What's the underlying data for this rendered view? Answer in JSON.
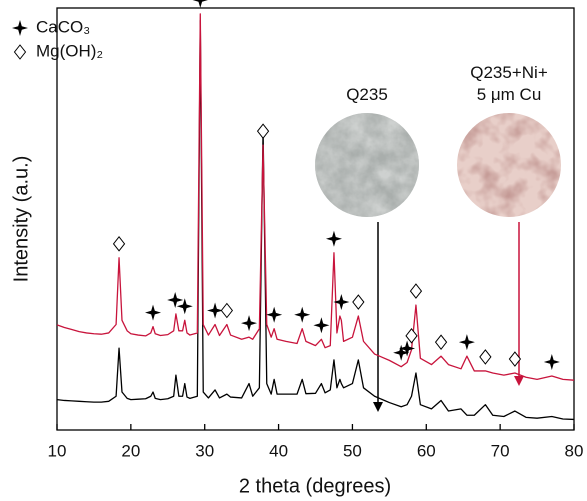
{
  "chart_data": {
    "type": "line",
    "xlabel": "2 theta (degrees)",
    "ylabel": "Intensity (a.u.)",
    "xlim": [
      10,
      80
    ],
    "xticks": [
      10,
      20,
      30,
      40,
      50,
      60,
      70,
      80
    ],
    "ylim": [
      0,
      100
    ],
    "x": [
      10,
      11,
      12,
      13,
      14,
      15,
      16,
      17,
      18,
      18.4,
      18.8,
      19.5,
      20,
      21,
      22,
      22.7,
      23,
      23.3,
      24,
      25,
      25.8,
      26.1,
      26.5,
      27,
      27.3,
      27.6,
      28,
      29,
      29.4,
      29.8,
      30.5,
      31.4,
      32,
      33,
      33.5,
      35,
      36,
      36.5,
      37.4,
      37.9,
      38.4,
      39,
      39.4,
      39.8,
      41,
      42.5,
      43.2,
      43.7,
      45,
      45.8,
      46.3,
      47,
      47.5,
      47.9,
      48.3,
      48.5,
      48.8,
      50,
      50.8,
      51.5,
      53,
      55,
      56.6,
      57.4,
      58,
      58.6,
      59.2,
      60.7,
      62,
      63,
      64.7,
      65.5,
      66.5,
      68,
      69,
      70.5,
      72,
      73.5,
      75,
      77,
      78.5,
      80
    ],
    "series": [
      {
        "name": "Q235",
        "color": "#000000",
        "values": [
          7.2,
          7.0,
          6.9,
          6.8,
          6.7,
          6.6,
          6.6,
          6.8,
          8,
          19.4,
          9,
          7.5,
          7.2,
          7.3,
          7.4,
          8,
          9,
          7.5,
          7.2,
          7.4,
          8,
          13,
          8,
          8,
          11,
          7.8,
          7.5,
          8,
          97,
          9,
          7.6,
          9.5,
          7.6,
          8.5,
          7.8,
          7.6,
          11,
          8,
          10,
          71,
          11,
          8.5,
          12,
          8.5,
          8.5,
          8.5,
          12,
          8.6,
          8.7,
          11,
          8.8,
          9.5,
          16.6,
          10,
          12,
          11,
          10,
          11,
          16.6,
          10,
          8,
          6.5,
          5.5,
          6,
          8,
          13.5,
          6,
          5,
          7,
          4.5,
          5,
          3.5,
          3.5,
          6,
          3.5,
          3.2,
          4.5,
          3,
          2.8,
          3.2,
          2.6,
          2.5
        ]
      },
      {
        "name": "Q235+Ni+ 5 μm Cu",
        "color": "#c8143c",
        "values": [
          24.9,
          24.3,
          23.8,
          23.3,
          23,
          22.8,
          22.7,
          23,
          25,
          40.8,
          26,
          23.5,
          22.8,
          22.5,
          22.3,
          23,
          24.5,
          22.8,
          22.4,
          22.6,
          23.5,
          27.5,
          23.5,
          23.5,
          26,
          23,
          22.5,
          23,
          98.6,
          25,
          22.5,
          25,
          22.4,
          25,
          22.5,
          21.5,
          22,
          21.5,
          24,
          67.5,
          25,
          22,
          24,
          21.5,
          21,
          20.5,
          24,
          21,
          20,
          21.5,
          19.5,
          20,
          42,
          23,
          27,
          26,
          21,
          22,
          27,
          21,
          18,
          16.5,
          15,
          16,
          19,
          29.6,
          17,
          15.5,
          17.5,
          15.5,
          14.5,
          17.5,
          14,
          14,
          13.5,
          13,
          13.5,
          12.5,
          12,
          12.8,
          12,
          11.8
        ]
      }
    ],
    "phases": [
      {
        "name": "CaCO₃",
        "peaks": [
          23,
          26,
          27.3,
          29.4,
          31.4,
          36,
          39.4,
          43.2,
          45.8,
          47.5,
          48.5,
          56.6,
          57.4,
          65.5,
          77
        ]
      },
      {
        "name": "Mg(OH)₂",
        "peaks": [
          18.4,
          33,
          37.9,
          50.8,
          58,
          58.6,
          62,
          68,
          72
        ]
      }
    ]
  }
}
